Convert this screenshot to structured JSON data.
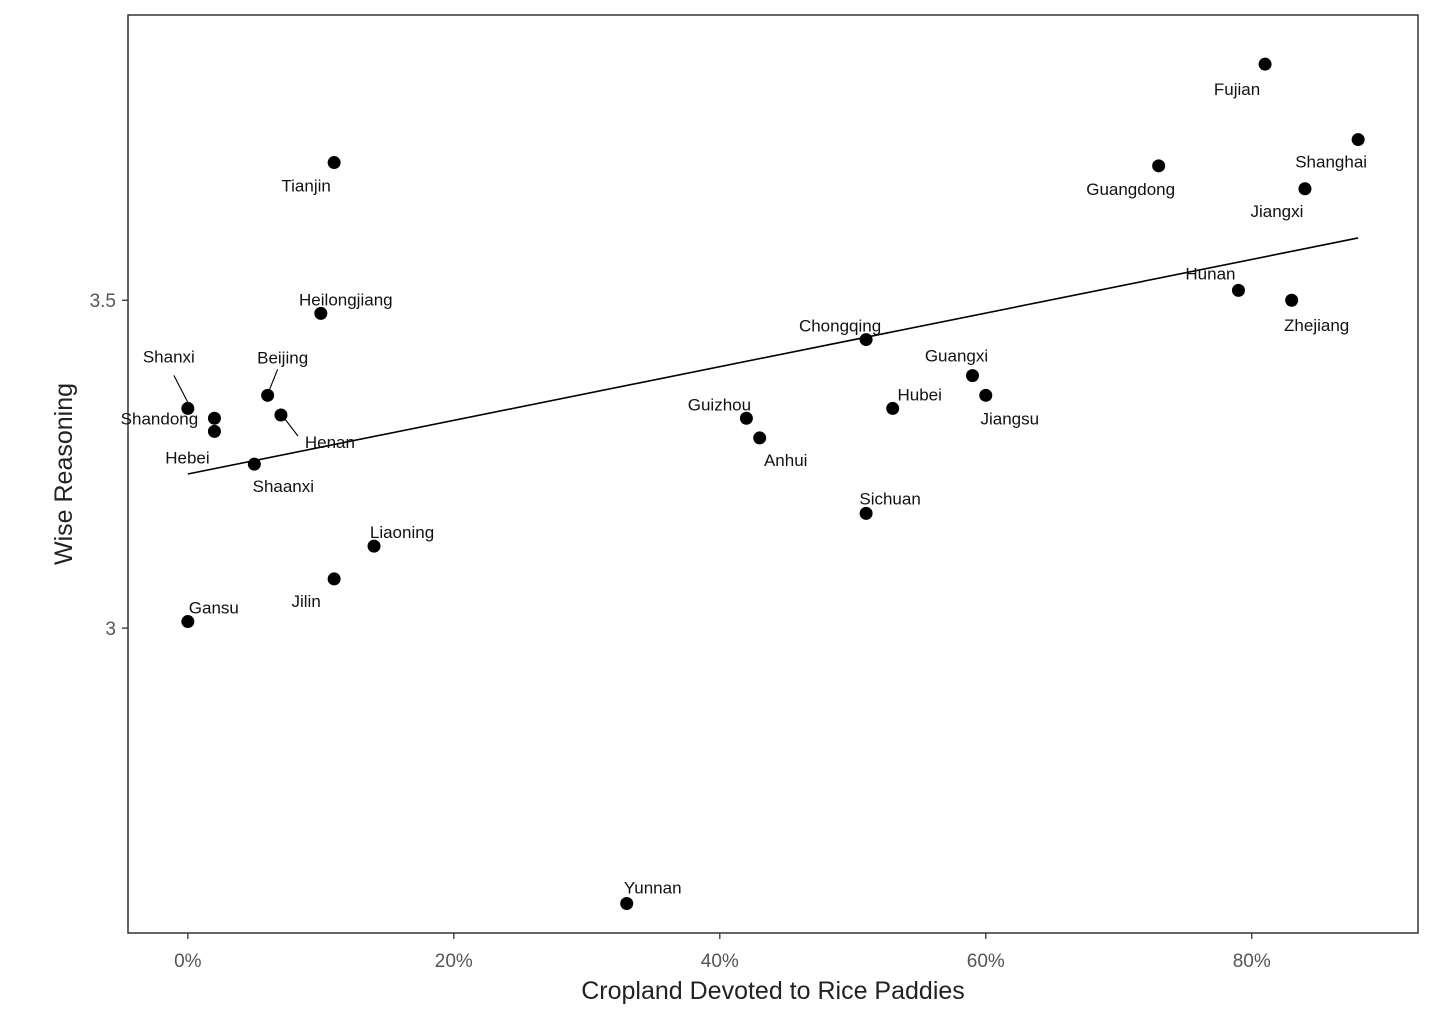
{
  "chart_data": {
    "type": "scatter",
    "title": "",
    "xlabel": "Cropland Devoted to Rice Paddies",
    "ylabel": "Wise Reasoning",
    "xlim": [
      -0.045,
      0.925
    ],
    "ylim": [
      2.535,
      3.935
    ],
    "x_ticks": [
      0,
      0.2,
      0.4,
      0.6,
      0.8
    ],
    "x_tick_labels": [
      "0%",
      "20%",
      "40%",
      "60%",
      "80%"
    ],
    "y_ticks": [
      3.0,
      3.5
    ],
    "y_tick_labels": [
      "3",
      "3.5"
    ],
    "grid": false,
    "trendline": {
      "x": [
        0,
        0.88
      ],
      "y": [
        3.235,
        3.595
      ]
    },
    "points": [
      {
        "label": "Fujian",
        "x": 0.81,
        "y": 3.86
      },
      {
        "label": "Shanghai",
        "x": 0.88,
        "y": 3.745
      },
      {
        "label": "Guangdong",
        "x": 0.73,
        "y": 3.705
      },
      {
        "label": "Jiangxi",
        "x": 0.84,
        "y": 3.67
      },
      {
        "label": "Tianjin",
        "x": 0.11,
        "y": 3.71
      },
      {
        "label": "Hunan",
        "x": 0.79,
        "y": 3.515
      },
      {
        "label": "Zhejiang",
        "x": 0.83,
        "y": 3.5
      },
      {
        "label": "Heilongjiang",
        "x": 0.1,
        "y": 3.48
      },
      {
        "label": "Chongqing",
        "x": 0.51,
        "y": 3.44
      },
      {
        "label": "Guangxi",
        "x": 0.59,
        "y": 3.385
      },
      {
        "label": "Jiangsu",
        "x": 0.6,
        "y": 3.355
      },
      {
        "label": "Hubei",
        "x": 0.53,
        "y": 3.335
      },
      {
        "label": "Shanxi",
        "x": 0.0,
        "y": 3.335
      },
      {
        "label": "Beijing",
        "x": 0.06,
        "y": 3.355
      },
      {
        "label": "Shandong",
        "x": 0.02,
        "y": 3.32
      },
      {
        "label": "Henan",
        "x": 0.07,
        "y": 3.325
      },
      {
        "label": "Hebei",
        "x": 0.02,
        "y": 3.3
      },
      {
        "label": "Shaanxi",
        "x": 0.05,
        "y": 3.25
      },
      {
        "label": "Guizhou",
        "x": 0.42,
        "y": 3.32
      },
      {
        "label": "Anhui",
        "x": 0.43,
        "y": 3.29
      },
      {
        "label": "Sichuan",
        "x": 0.51,
        "y": 3.175
      },
      {
        "label": "Liaoning",
        "x": 0.14,
        "y": 3.125
      },
      {
        "label": "Jilin",
        "x": 0.11,
        "y": 3.075
      },
      {
        "label": "Gansu",
        "x": 0.0,
        "y": 3.01
      },
      {
        "label": "Yunnan",
        "x": 0.33,
        "y": 2.58
      }
    ]
  }
}
